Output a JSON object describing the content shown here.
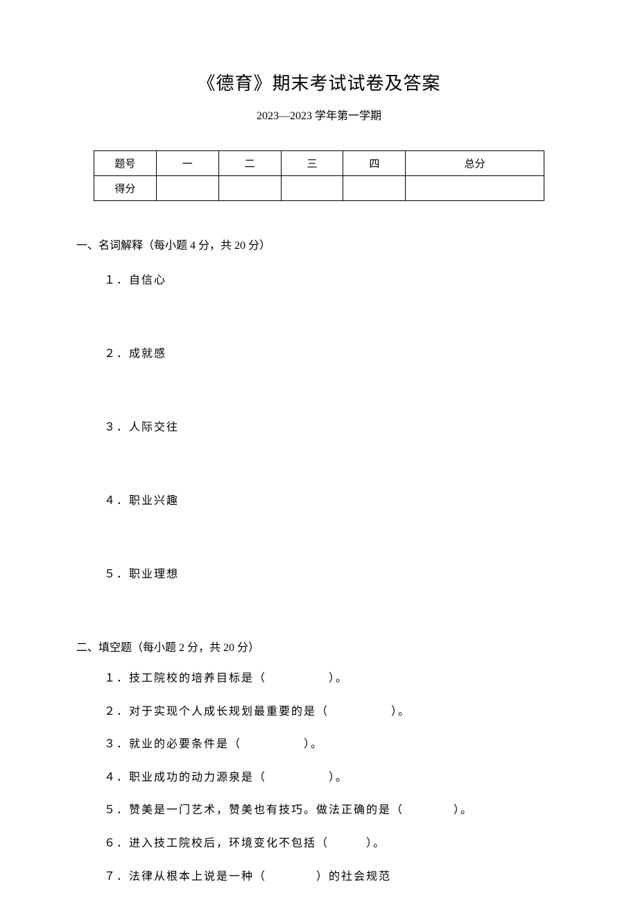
{
  "title": "《德育》期末考试试卷及答案",
  "subtitle": "2023—2023 学年第一学期",
  "score_table": {
    "header_label": "题号",
    "score_label": "得分",
    "col1": "一",
    "col2": "二",
    "col3": "三",
    "col4": "四",
    "total": "总分"
  },
  "section1": {
    "heading": "一、名词解释（每小题 4 分，共 20 分）",
    "items": [
      "１．自信心",
      "２．成就感",
      "３．人际交往",
      "４．职业兴趣",
      "５．职业理想"
    ]
  },
  "section2": {
    "heading": "二、填空题（每小题 2 分，共 20 分）",
    "items": [
      "１．技工院校的培养目标是（　　　　　）。",
      "２．对于实现个人成长规划最重要的是（　　　　　）。",
      "３．就业的必要条件是（　　　　　）。",
      "４．职业成功的动力源泉是（　　　　　）。",
      "５．赞美是一门艺术，赞美也有技巧。做法正确的是（　　　　）。",
      "６．进入技工院校后，环境变化不包括（　　　）。",
      "７．法律从根本上说是一种（　　　　）的社会规范"
    ]
  }
}
